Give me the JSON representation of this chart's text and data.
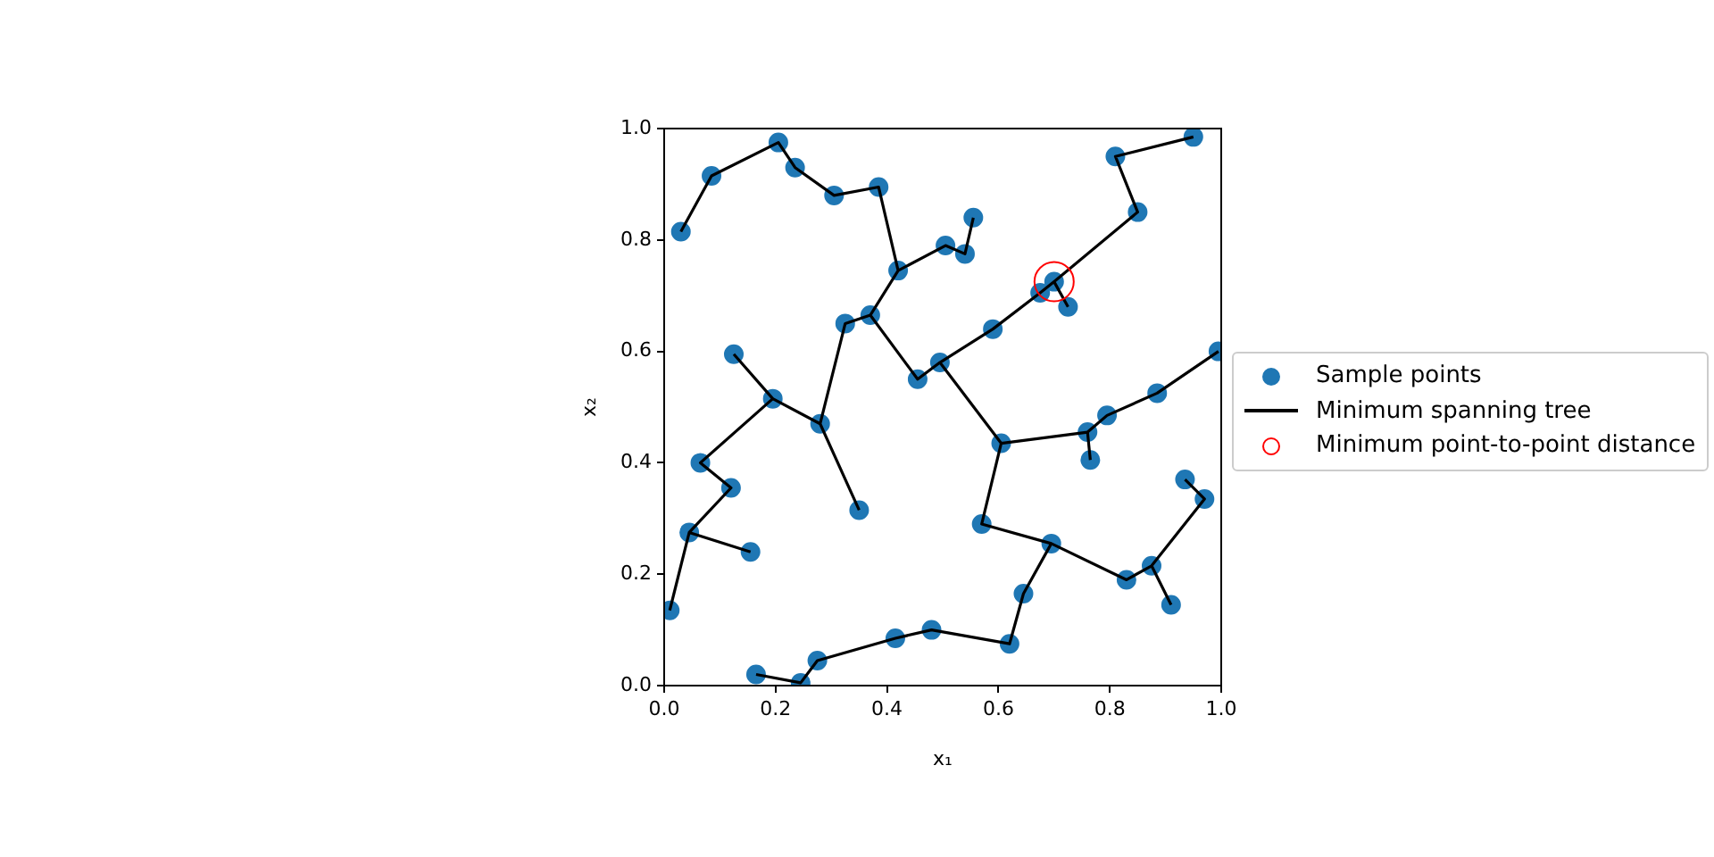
{
  "chart_data": {
    "type": "scatter",
    "xlabel": "x₁",
    "ylabel": "x₂",
    "xlim": [
      0,
      1
    ],
    "ylim": [
      0,
      1
    ],
    "xticks": [
      {
        "value": 0,
        "label": "0.0"
      },
      {
        "value": 0.2,
        "label": "0.2"
      },
      {
        "value": 0.4,
        "label": "0.4"
      },
      {
        "value": 0.6,
        "label": "0.6"
      },
      {
        "value": 0.8,
        "label": "0.8"
      },
      {
        "value": 1,
        "label": "1.0"
      }
    ],
    "yticks": [
      {
        "value": 0,
        "label": "0.0"
      },
      {
        "value": 0.2,
        "label": "0.2"
      },
      {
        "value": 0.4,
        "label": "0.4"
      },
      {
        "value": 0.6,
        "label": "0.6"
      },
      {
        "value": 0.8,
        "label": "0.8"
      },
      {
        "value": 1,
        "label": "1.0"
      }
    ],
    "grid": false,
    "legend": "right",
    "series": [
      {
        "name": "Sample points",
        "type": "scatter",
        "color": "#1f77b4",
        "marker": "circle",
        "x": [
          0.01,
          0.045,
          0.065,
          0.12,
          0.155,
          0.125,
          0.195,
          0.28,
          0.35,
          0.325,
          0.37,
          0.455,
          0.495,
          0.42,
          0.505,
          0.54,
          0.555,
          0.385,
          0.305,
          0.235,
          0.205,
          0.085,
          0.03,
          0.59,
          0.675,
          0.7,
          0.725,
          0.85,
          0.81,
          0.95,
          0.605,
          0.76,
          0.765,
          0.795,
          0.885,
          0.995,
          0.57,
          0.695,
          0.83,
          0.875,
          0.91,
          0.935,
          0.97,
          0.645,
          0.62,
          0.48,
          0.415,
          0.275,
          0.245,
          0.165
        ],
        "values": [
          0.135,
          0.275,
          0.4,
          0.355,
          0.24,
          0.595,
          0.515,
          0.47,
          0.315,
          0.65,
          0.665,
          0.55,
          0.58,
          0.745,
          0.79,
          0.775,
          0.84,
          0.895,
          0.88,
          0.93,
          0.975,
          0.915,
          0.815,
          0.64,
          0.705,
          0.725,
          0.68,
          0.85,
          0.95,
          0.985,
          0.435,
          0.455,
          0.405,
          0.485,
          0.525,
          0.6,
          0.29,
          0.255,
          0.19,
          0.215,
          0.145,
          0.37,
          0.335,
          0.165,
          0.075,
          0.1,
          0.085,
          0.045,
          0.005,
          0.02
        ]
      },
      {
        "name": "Minimum spanning tree",
        "type": "line",
        "color": "#000000",
        "marker": "none",
        "line_style": "solid",
        "x": [
          0.03,
          0.085,
          0.205,
          0.235,
          0.305,
          0.385,
          0.42,
          0.37,
          0.325,
          0.28,
          0.195,
          0.065,
          0.12,
          0.045,
          0.01,
          null,
          0.045,
          0.155,
          null,
          0.195,
          0.125,
          null,
          0.28,
          0.35,
          null,
          0.37,
          0.455,
          0.495,
          0.59,
          0.675,
          0.7,
          0.85,
          0.81,
          0.95,
          null,
          0.7,
          0.725,
          null,
          0.495,
          0.605,
          0.76,
          0.795,
          0.885,
          0.995,
          null,
          0.76,
          0.765,
          null,
          0.605,
          0.57,
          0.695,
          0.83,
          0.875,
          0.97,
          0.935,
          null,
          0.875,
          0.91,
          null,
          0.695,
          0.645,
          0.62,
          0.48,
          0.415,
          0.275,
          0.245,
          0.165,
          null,
          0.42,
          0.505,
          0.54,
          0.555
        ],
        "values": [
          0.815,
          0.915,
          0.975,
          0.93,
          0.88,
          0.895,
          0.745,
          0.665,
          0.65,
          0.47,
          0.515,
          0.4,
          0.355,
          0.275,
          0.135,
          null,
          0.275,
          0.24,
          null,
          0.515,
          0.595,
          null,
          0.47,
          0.315,
          null,
          0.665,
          0.55,
          0.58,
          0.64,
          0.705,
          0.725,
          0.85,
          0.95,
          0.985,
          null,
          0.725,
          0.68,
          null,
          0.58,
          0.435,
          0.455,
          0.485,
          0.525,
          0.6,
          null,
          0.455,
          0.405,
          null,
          0.435,
          0.29,
          0.255,
          0.19,
          0.215,
          0.335,
          0.37,
          null,
          0.215,
          0.145,
          null,
          0.255,
          0.165,
          0.075,
          0.1,
          0.085,
          0.045,
          0.005,
          0.02,
          null,
          0.745,
          0.79,
          0.775,
          0.84
        ]
      },
      {
        "name": "Minimum point-to-point distance",
        "type": "scatter",
        "color": "#ff0000",
        "marker": "circle",
        "x": [
          0.7
        ],
        "values": [
          0.725
        ]
      }
    ]
  }
}
